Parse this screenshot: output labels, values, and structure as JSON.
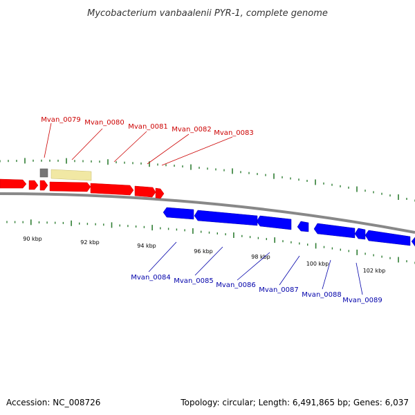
{
  "header": {
    "title": "Mycobacterium vanbaalenii PYR-1, complete genome"
  },
  "footer": {
    "accession": "Accession: NC_008726",
    "summary": "Topology: circular; Length: 6,491,865 bp; Genes: 6,037"
  },
  "colors": {
    "forward_gene": "#ff0000",
    "reverse_gene": "#0000ff",
    "forward_label": "#cc0000",
    "reverse_label": "#0000aa",
    "pseudo_gene": "#f1e8a4",
    "rna_gene": "#777777",
    "backbone": "#888888",
    "ticks": "#2e7d32"
  },
  "scale_labels": [
    "90 kbp",
    "92 kbp",
    "94 kbp",
    "96 kbp",
    "98 kbp",
    "100 kbp",
    "102 kbp"
  ],
  "forward_labels": [
    "Mvan_0079",
    "Mvan_0080",
    "Mvan_0081",
    "Mvan_0082",
    "Mvan_0083"
  ],
  "reverse_labels": [
    "Mvan_0084",
    "Mvan_0085",
    "Mvan_0086",
    "Mvan_0087",
    "Mvan_0088",
    "Mvan_0089"
  ]
}
